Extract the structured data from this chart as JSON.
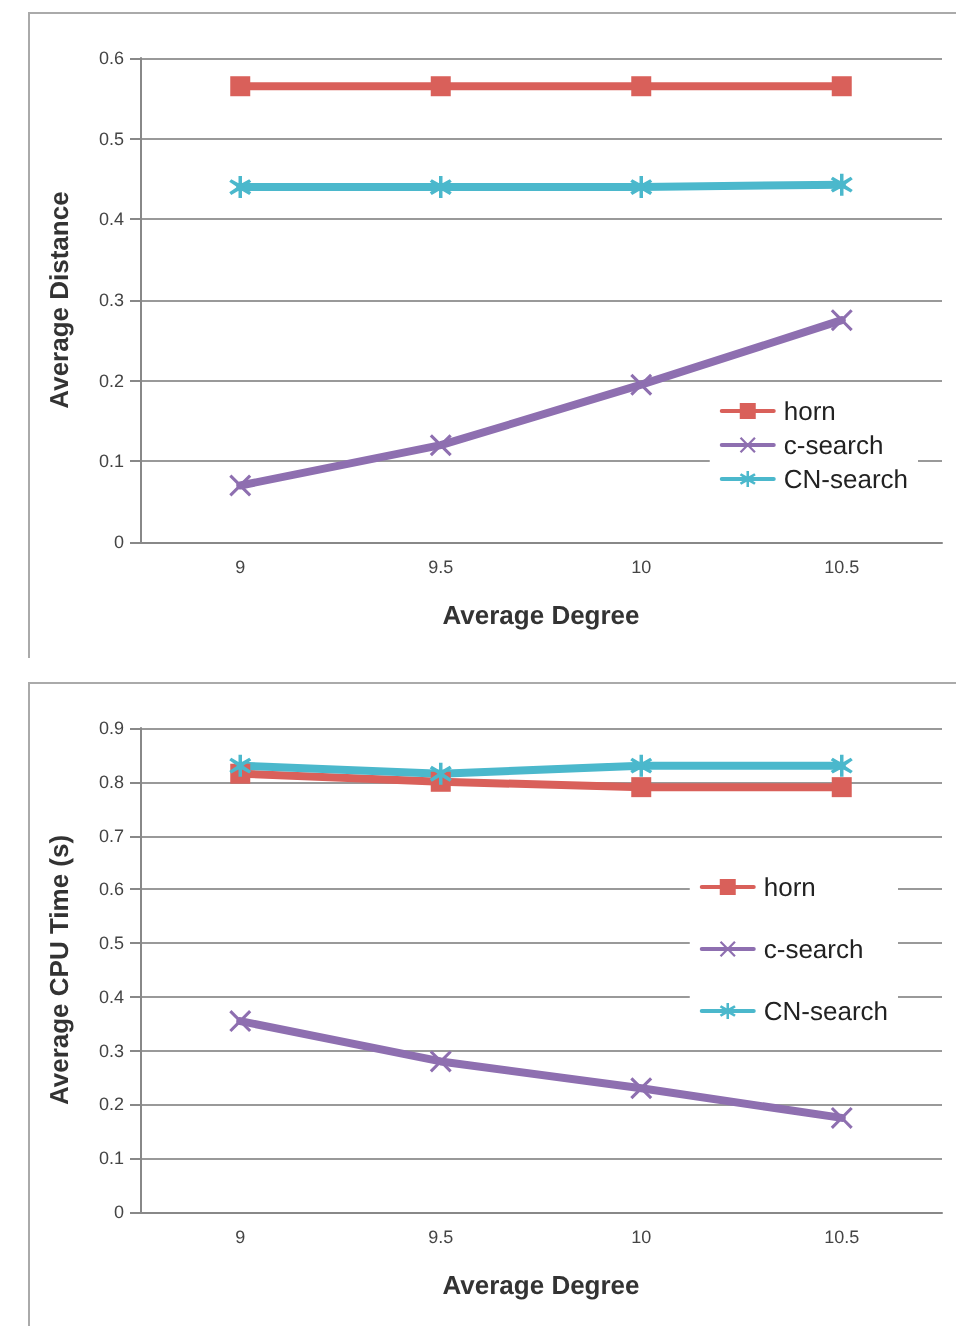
{
  "chart_data": [
    {
      "type": "line",
      "xlabel": "Average Degree",
      "ylabel": "Average Distance",
      "categories": [
        "9",
        "9.5",
        "10",
        "10.5"
      ],
      "series": [
        {
          "name": "horn",
          "color": "#d9605a",
          "marker": "square",
          "values": [
            0.565,
            0.565,
            0.565,
            0.565
          ]
        },
        {
          "name": "c-search",
          "color": "#8e6fb0",
          "marker": "cross",
          "values": [
            0.07,
            0.12,
            0.195,
            0.275
          ]
        },
        {
          "name": "CN-search",
          "color": "#4bb8cc",
          "marker": "star",
          "values": [
            0.44,
            0.44,
            0.44,
            0.443
          ]
        }
      ],
      "ylim": [
        0,
        0.6
      ],
      "yticks": [
        0,
        0.1,
        0.2,
        0.3,
        0.4,
        0.5,
        0.6
      ],
      "grid": "y",
      "legend": "bottom right"
    },
    {
      "type": "line",
      "xlabel": "Average Degree",
      "ylabel": "Average CPU Time (s)",
      "categories": [
        "9",
        "9.5",
        "10",
        "10.5"
      ],
      "series": [
        {
          "name": "horn",
          "color": "#d9605a",
          "marker": "square",
          "values": [
            0.815,
            0.8,
            0.79,
            0.79
          ]
        },
        {
          "name": "c-search",
          "color": "#8e6fb0",
          "marker": "cross",
          "values": [
            0.355,
            0.28,
            0.23,
            0.175
          ]
        },
        {
          "name": "CN-search",
          "color": "#4bb8cc",
          "marker": "star",
          "values": [
            0.83,
            0.815,
            0.83,
            0.83
          ]
        }
      ],
      "ylim": [
        0,
        0.9
      ],
      "yticks": [
        0,
        0.1,
        0.2,
        0.3,
        0.4,
        0.5,
        0.6,
        0.7,
        0.8,
        0.9
      ],
      "grid": "y",
      "legend": "right"
    }
  ]
}
